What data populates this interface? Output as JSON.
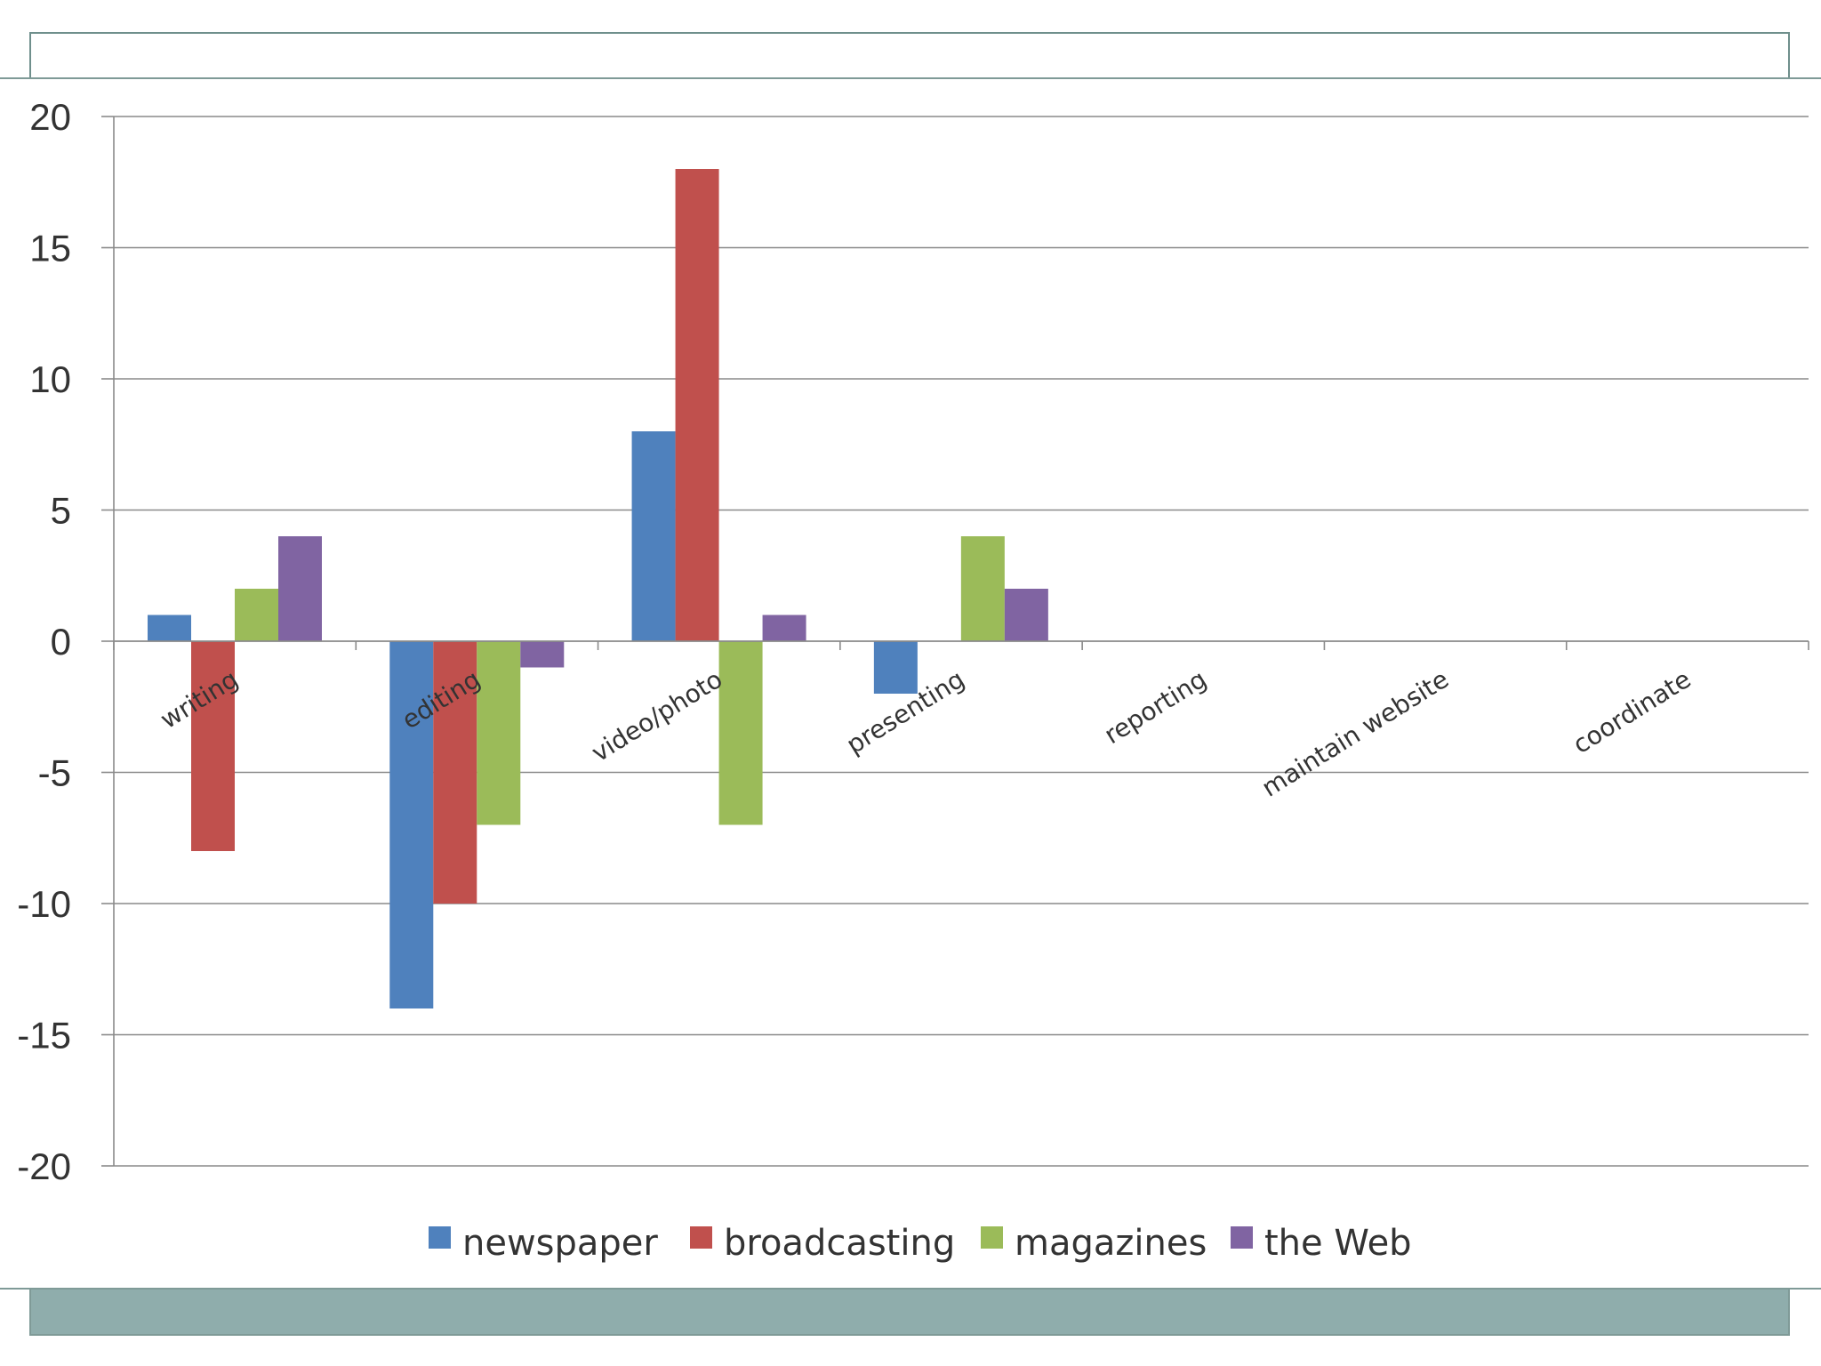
{
  "chart_data": {
    "type": "bar",
    "title": "",
    "xlabel": "",
    "ylabel": "",
    "ylim": [
      -20,
      20
    ],
    "yticks": [
      20,
      15,
      10,
      5,
      0,
      -5,
      -10,
      -15,
      -20
    ],
    "grid": true,
    "legend_position": "bottom",
    "categories": [
      "writing",
      "editing",
      "video/photo",
      "presenting",
      "reporting",
      "maintain website",
      "coordinate"
    ],
    "series": [
      {
        "name": "newspaper",
        "color": "#4f81bd",
        "values": [
          1,
          -14,
          8,
          -2,
          0,
          0,
          0
        ]
      },
      {
        "name": "broadcasting",
        "color": "#c0504d",
        "values": [
          -8,
          -10,
          18,
          0,
          0,
          0,
          0
        ]
      },
      {
        "name": "magazines",
        "color": "#9bbb59",
        "values": [
          2,
          -7,
          -7,
          4,
          0,
          0,
          0
        ]
      },
      {
        "name": "the Web",
        "color": "#8064a2",
        "values": [
          4,
          -1,
          1,
          2,
          0,
          0,
          0
        ]
      }
    ]
  }
}
